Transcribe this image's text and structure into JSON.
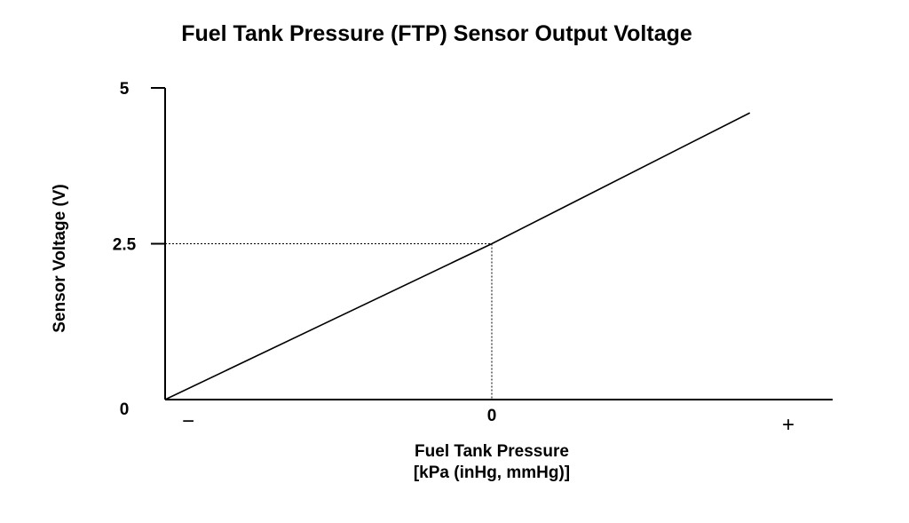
{
  "chart_data": {
    "type": "line",
    "title": "Fuel Tank Pressure (FTP) Sensor Output Voltage",
    "xlabel_line1": "Fuel Tank Pressure",
    "xlabel_line2": "[kPa (inHg, mmHg)]",
    "ylabel": "Sensor Voltage (V)",
    "x_tick_labels": {
      "negative": "−",
      "zero": "0",
      "positive": "+"
    },
    "y_ticks": [
      {
        "value": 5,
        "label": "5"
      },
      {
        "value": 2.5,
        "label": "2.5"
      },
      {
        "value": 0,
        "label": "0"
      }
    ],
    "xlim": [
      -1,
      1
    ],
    "ylim": [
      0,
      5
    ],
    "series": [
      {
        "x": [
          -1,
          0,
          0.79
        ],
        "y": [
          0,
          2.5,
          4.6
        ]
      }
    ],
    "reference_point": {
      "x": 0,
      "y": 2.5
    },
    "grid": false,
    "legend": "none",
    "colors": {
      "line": "#000000",
      "background": "#ffffff"
    }
  }
}
